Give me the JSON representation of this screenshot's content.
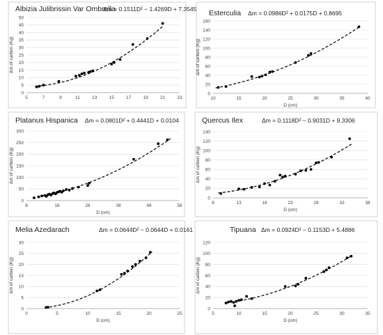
{
  "chart_data": [
    {
      "type": "scatter",
      "title": "Albizia Julibrissin Var Ombrella",
      "equation": "Δm = 0.1511D² − 1.4269D + 7.3545",
      "coef": [
        0.1511,
        -1.4269,
        7.3545
      ],
      "xlabel": "",
      "ylabel": "Δm of carbon (Kg)",
      "xlim": [
        5,
        23
      ],
      "ylim": [
        0,
        50
      ],
      "xticks": [
        5,
        7,
        9,
        11,
        13,
        15,
        17,
        19,
        21,
        23
      ],
      "yticks": [
        0,
        5,
        10,
        15,
        20,
        25,
        30,
        35,
        40,
        45,
        50
      ],
      "fit_range": [
        6,
        21
      ],
      "x": [
        6.2,
        6.5,
        7.0,
        8.8,
        10.8,
        11.2,
        11.5,
        11.8,
        12.3,
        12.5,
        12.8,
        15.0,
        15.3,
        16.0,
        17.5,
        19.2,
        21.0
      ],
      "y": [
        3.8,
        4.2,
        5.0,
        7.5,
        11.0,
        11.5,
        12.5,
        13.0,
        13.5,
        14.0,
        14.5,
        19.0,
        20.0,
        22.0,
        32.0,
        36.0,
        46.0
      ]
    },
    {
      "type": "scatter",
      "title": "Esterculia",
      "equation": "Δm = 0.0986D² + 0.0175D + 0.8695",
      "coef": [
        0.0986,
        0.0175,
        0.8695
      ],
      "xlabel": "D (cm)",
      "ylabel": "Δm of carbon (Kg)",
      "xlim": [
        10,
        40
      ],
      "ylim": [
        0,
        160
      ],
      "xticks": [
        10,
        15,
        20,
        25,
        30,
        35,
        40
      ],
      "yticks": [
        0,
        20,
        40,
        60,
        80,
        100,
        120,
        140,
        160
      ],
      "fit_range": [
        10.5,
        38.5
      ],
      "x": [
        11.0,
        12.5,
        17.5,
        19.0,
        19.5,
        20.2,
        21.0,
        21.5,
        26.0,
        28.5,
        29.0,
        38.3
      ],
      "y": [
        13,
        15,
        37,
        36,
        38,
        41,
        47,
        48,
        68,
        84,
        88,
        147
      ]
    },
    {
      "type": "scatter",
      "title": "Platanus Hispanica",
      "equation": "Δm = 0.0801D² + 0.4441D + 0.0104",
      "coef": [
        0.0801,
        0.4441,
        0.0104
      ],
      "xlabel": "D (cm)",
      "ylabel": "Δm of carbon (Kg)",
      "xlim": [
        8,
        58
      ],
      "ylim": [
        0,
        300
      ],
      "xticks": [
        8,
        18,
        28,
        38,
        48,
        58
      ],
      "yticks": [
        0,
        50,
        100,
        150,
        200,
        250,
        300
      ],
      "fit_range": [
        10,
        55
      ],
      "x": [
        10.5,
        12,
        13,
        14,
        14.5,
        15,
        15.5,
        16,
        16.5,
        17,
        17.5,
        18,
        18.5,
        19,
        19.5,
        20,
        21,
        22,
        23,
        25,
        28,
        28.5,
        43,
        51,
        54
      ],
      "y": [
        12,
        16,
        20,
        22,
        18,
        25,
        28,
        24,
        30,
        33,
        29,
        35,
        38,
        40,
        36,
        42,
        48,
        45,
        52,
        58,
        65,
        75,
        178,
        245,
        262
      ]
    },
    {
      "type": "scatter",
      "title": "Quercus Ilex",
      "equation": "Δm = 0.1118D² − 0.9031D + 9.3306",
      "coef": [
        0.1118,
        -0.9031,
        9.3306
      ],
      "xlabel": "D (cm)",
      "ylabel": "Δm of carbon (Kg)",
      "xlim": [
        8,
        38
      ],
      "ylim": [
        0,
        140
      ],
      "xticks": [
        8,
        13,
        18,
        23,
        28,
        33,
        38
      ],
      "yticks": [
        0,
        20,
        40,
        60,
        80,
        100,
        120,
        140
      ],
      "fit_range": [
        9,
        35
      ],
      "x": [
        9.5,
        13,
        14,
        15.5,
        17,
        18,
        19,
        20,
        21,
        21.5,
        22,
        24,
        25,
        26,
        27,
        28,
        28.5,
        31,
        34.5
      ],
      "y": [
        9,
        19,
        18,
        22,
        23,
        30,
        27,
        35,
        48,
        44,
        46,
        50,
        57,
        58,
        60,
        74,
        75,
        86,
        125
      ]
    },
    {
      "type": "scatter",
      "title": "Melia Azedarach",
      "equation": "Δm = 0.0644D² − 0.0644D + 0.0161",
      "coef": [
        0.0644,
        -0.0644,
        0.0161
      ],
      "xlabel": "D (cm)",
      "ylabel": "Δm of carbon (Kg)",
      "xlim": [
        0,
        25
      ],
      "ylim": [
        0,
        30
      ],
      "xticks": [
        0,
        5,
        10,
        15,
        20,
        25
      ],
      "yticks": [
        0,
        5,
        10,
        15,
        20,
        25,
        30
      ],
      "fit_range": [
        3,
        20.5
      ],
      "x": [
        3.2,
        3.5,
        11.5,
        12.0,
        15.5,
        16.0,
        16.5,
        17.3,
        17.8,
        18.5,
        19.5,
        20.2
      ],
      "y": [
        0.5,
        0.6,
        8.0,
        8.5,
        15.5,
        16.0,
        17.0,
        19.0,
        20.0,
        21.5,
        23.0,
        25.5
      ]
    },
    {
      "type": "scatter",
      "title": "Tipuana",
      "equation": "Δm = 0.0924D² − 0.1153D + 5.4886",
      "coef": [
        0.0924,
        -0.1153,
        5.4886
      ],
      "xlabel": "D (cm)",
      "ylabel": "Δm of carbon (Kg)",
      "xlim": [
        5,
        35
      ],
      "ylim": [
        0,
        120
      ],
      "xticks": [
        5,
        10,
        15,
        20,
        25,
        30,
        35
      ],
      "yticks": [
        0,
        20,
        40,
        60,
        80,
        100,
        120
      ],
      "fit_range": [
        7.5,
        32
      ],
      "x": [
        7.5,
        8.0,
        8.5,
        9.0,
        9.2,
        9.5,
        10.0,
        10.5,
        11.5,
        12.5,
        19.0,
        21.0,
        21.5,
        23.0,
        26.5,
        27.0,
        27.5,
        31.0,
        31.8
      ],
      "y": [
        10,
        12,
        13,
        11,
        5,
        13,
        15,
        16,
        22,
        18,
        40,
        41,
        44,
        55,
        67,
        70,
        74,
        92,
        95
      ]
    }
  ]
}
